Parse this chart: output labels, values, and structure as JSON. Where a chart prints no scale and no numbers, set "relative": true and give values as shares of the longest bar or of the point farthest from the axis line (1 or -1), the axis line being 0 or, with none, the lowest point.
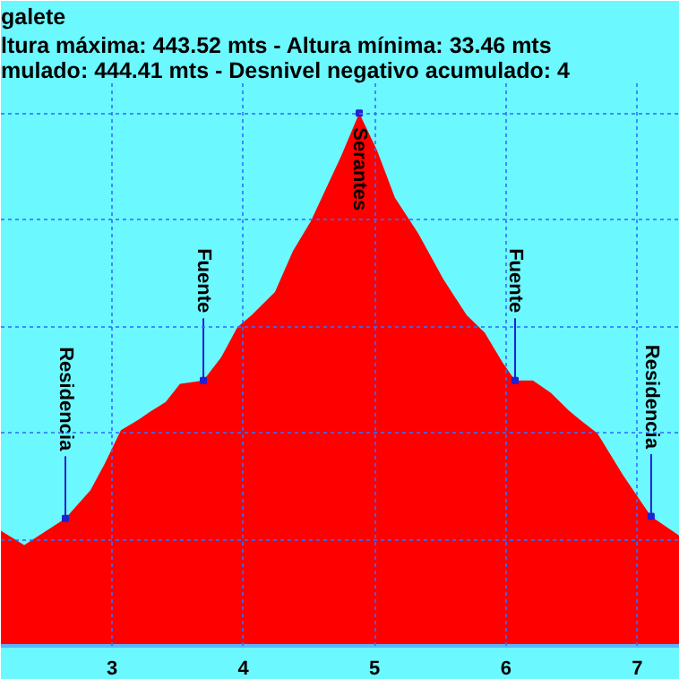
{
  "chart_data": {
    "type": "area",
    "title": "galete",
    "subtitle": "ltura máxima: 443.52 mts - Altura mínima: 33.46 mts\nmulado: 444.41 mts - Desnivel negativo acumulado: 4",
    "relative": true,
    "x": [
      2.154,
      2.332,
      2.645,
      2.836,
      2.945,
      3.068,
      3.205,
      3.286,
      3.409,
      3.518,
      3.696,
      3.832,
      3.955,
      4.064,
      4.241,
      4.378,
      4.514,
      4.746,
      4.883,
      5.019,
      5.155,
      5.333,
      5.524,
      5.701,
      5.838,
      5.974,
      6.07,
      6.206,
      6.342,
      6.479,
      6.561,
      6.697,
      6.888,
      7.025,
      7.106,
      7.325
    ],
    "series": [
      {
        "color": "#ff0000",
        "values": [
          0.216,
          0.189,
          0.239,
          0.292,
          0.342,
          0.405,
          0.425,
          0.439,
          0.458,
          0.492,
          0.498,
          0.542,
          0.598,
          0.621,
          0.664,
          0.741,
          0.797,
          0.92,
          1,
          0.93,
          0.841,
          0.774,
          0.688,
          0.621,
          0.588,
          0.532,
          0.498,
          0.498,
          0.475,
          0.442,
          0.425,
          0.399,
          0.322,
          0.272,
          0.243,
          0.206
        ]
      }
    ],
    "xlim": [
      2.154,
      7.325
    ],
    "xticks": [
      3,
      4,
      5,
      6,
      7
    ],
    "grid": true,
    "tick_labels": "x",
    "annotations": [
      {
        "text": "Residencia",
        "x": 2.645,
        "y": 0.239
      },
      {
        "text": "Fuente",
        "x": 3.696,
        "y": 0.498
      },
      {
        "text": "Serantes",
        "x": 4.883,
        "y": 1
      },
      {
        "text": "Fuente",
        "x": 6.07,
        "y": 0.498
      },
      {
        "text": "Residencia",
        "x": 7.106,
        "y": 0.243
      }
    ]
  }
}
